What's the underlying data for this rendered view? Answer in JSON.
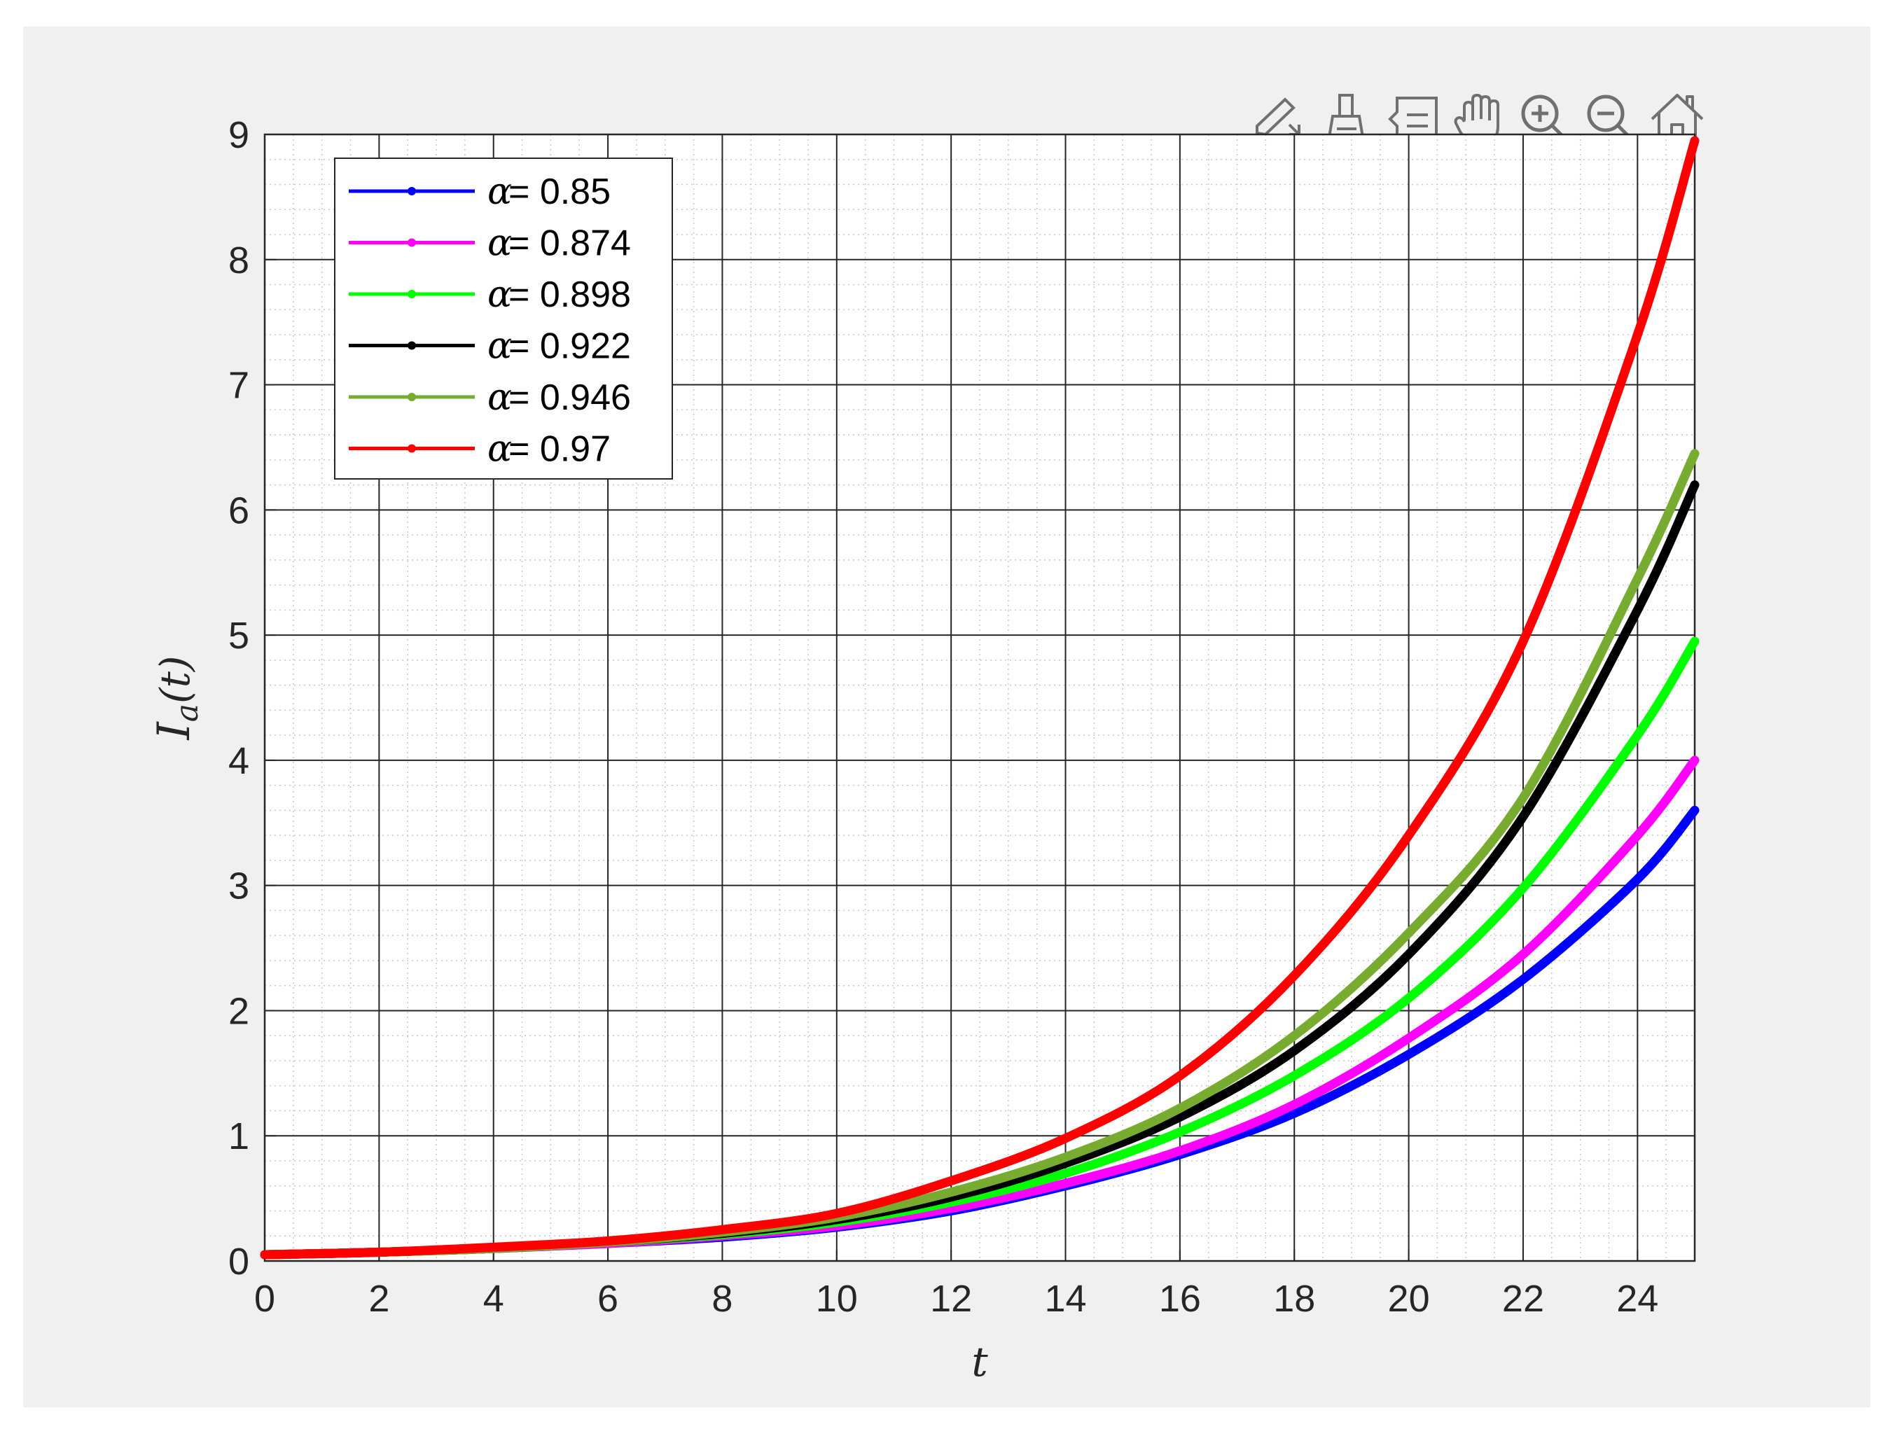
{
  "toolbar": {
    "icons": [
      "edit-plot-icon",
      "brush-icon",
      "data-tips-icon",
      "pan-icon",
      "zoom-in-icon",
      "zoom-out-icon",
      "home-icon"
    ]
  },
  "chart_data": {
    "type": "line",
    "xlabel": "t",
    "ylabel_main": "I",
    "ylabel_sub": "a",
    "ylabel_arg": "(t)",
    "xlim": [
      0,
      25
    ],
    "ylim": [
      0,
      9
    ],
    "xticks": [
      "0",
      "2",
      "4",
      "6",
      "8",
      "10",
      "12",
      "14",
      "16",
      "18",
      "20",
      "22",
      "24"
    ],
    "yticks": [
      "0",
      "1",
      "2",
      "3",
      "4",
      "5",
      "6",
      "7",
      "8",
      "9"
    ],
    "grid": true,
    "minor_grid": true,
    "legend_position": "top-left",
    "legend_symbol": "α",
    "legend_sep": " = ",
    "x": [
      0,
      2,
      4,
      6,
      8,
      10,
      12,
      14,
      16,
      18,
      20,
      22,
      24,
      25
    ],
    "series": [
      {
        "name": "0.85",
        "color": "#0000ff",
        "values": [
          0.05,
          0.07,
          0.1,
          0.14,
          0.19,
          0.27,
          0.4,
          0.6,
          0.85,
          1.18,
          1.65,
          2.25,
          3.05,
          3.6
        ]
      },
      {
        "name": "0.874",
        "color": "#ff00ff",
        "values": [
          0.05,
          0.07,
          0.1,
          0.14,
          0.2,
          0.28,
          0.42,
          0.62,
          0.88,
          1.25,
          1.78,
          2.45,
          3.4,
          4.0
        ]
      },
      {
        "name": "0.898",
        "color": "#00ff00",
        "values": [
          0.05,
          0.07,
          0.1,
          0.15,
          0.21,
          0.31,
          0.47,
          0.7,
          1.03,
          1.48,
          2.1,
          2.98,
          4.2,
          4.95
        ]
      },
      {
        "name": "0.922",
        "color": "#000000",
        "values": [
          0.05,
          0.07,
          0.1,
          0.15,
          0.22,
          0.33,
          0.51,
          0.78,
          1.15,
          1.68,
          2.45,
          3.55,
          5.2,
          6.2
        ]
      },
      {
        "name": "0.946",
        "color": "#77ac30",
        "values": [
          0.05,
          0.07,
          0.1,
          0.15,
          0.23,
          0.35,
          0.55,
          0.83,
          1.22,
          1.8,
          2.62,
          3.7,
          5.45,
          6.45
        ]
      },
      {
        "name": "0.97",
        "color": "#ff0000",
        "values": [
          0.05,
          0.07,
          0.11,
          0.16,
          0.25,
          0.38,
          0.64,
          0.98,
          1.48,
          2.28,
          3.4,
          4.95,
          7.4,
          8.95
        ]
      }
    ]
  }
}
